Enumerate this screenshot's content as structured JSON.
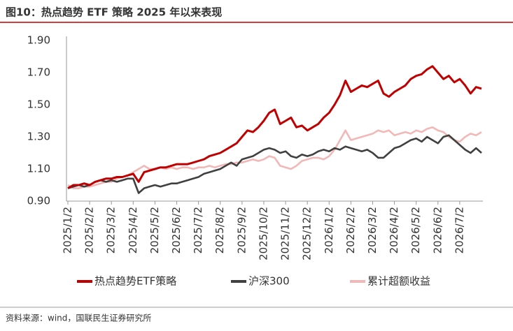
{
  "title": "图10：热点趋势 ETF 策略 2025 年以来表现",
  "source": "资料来源：wind，国联民生证券研究所",
  "chart_data": {
    "type": "line",
    "categories": [
      "2025/1/2",
      null,
      null,
      null,
      "2025/2/2",
      null,
      null,
      null,
      "2025/3/2",
      null,
      null,
      null,
      "2025/4/2",
      null,
      null,
      null,
      "2025/5/2",
      null,
      null,
      null,
      "2025/6/2",
      null,
      null,
      null,
      "2025/7/2",
      null,
      null,
      null,
      "2025/8/2",
      null,
      null,
      null,
      "2025/9/2",
      null,
      null,
      null,
      "2025/10/2",
      null,
      null,
      null,
      "2025/11/2",
      null,
      null,
      null,
      "2025/12/2",
      null,
      null,
      null,
      "2026/1/2",
      null,
      null,
      null,
      "2026/2/2",
      null,
      null,
      null,
      "2026/3/2",
      null,
      null,
      null,
      "2026/4/2",
      null,
      null,
      null,
      "2026/5/2",
      null,
      null,
      null,
      "2026/6/2",
      null,
      null,
      null,
      "2026/7/2",
      null,
      null,
      null,
      null
    ],
    "ylim": [
      0.9,
      1.9
    ],
    "yticks": [
      {
        "value": 0.9,
        "label": "0.90"
      },
      {
        "value": 1.1,
        "label": "1.10"
      },
      {
        "value": 1.3,
        "label": "1.30"
      },
      {
        "value": 1.5,
        "label": "1.50"
      },
      {
        "value": 1.7,
        "label": "1.70"
      },
      {
        "value": 1.9,
        "label": "1.90"
      }
    ],
    "grid": false,
    "series": [
      {
        "name": "热点趋势ETF策略",
        "color": "#c00000",
        "values": [
          0.98,
          1.0,
          1.0,
          1.01,
          1.0,
          1.02,
          1.03,
          1.04,
          1.04,
          1.05,
          1.05,
          1.06,
          1.07,
          1.02,
          1.08,
          1.09,
          1.1,
          1.11,
          1.11,
          1.12,
          1.13,
          1.13,
          1.13,
          1.14,
          1.15,
          1.16,
          1.18,
          1.19,
          1.2,
          1.22,
          1.24,
          1.26,
          1.3,
          1.34,
          1.33,
          1.36,
          1.4,
          1.45,
          1.47,
          1.38,
          1.4,
          1.42,
          1.36,
          1.37,
          1.34,
          1.36,
          1.38,
          1.42,
          1.45,
          1.5,
          1.56,
          1.65,
          1.58,
          1.6,
          1.62,
          1.61,
          1.63,
          1.65,
          1.57,
          1.55,
          1.58,
          1.6,
          1.62,
          1.66,
          1.68,
          1.69,
          1.72,
          1.74,
          1.7,
          1.66,
          1.68,
          1.64,
          1.66,
          1.62,
          1.57,
          1.61,
          1.6
        ]
      },
      {
        "name": "沪深300",
        "color": "#404040",
        "values": [
          0.98,
          0.99,
          1.0,
          0.99,
          1.0,
          1.02,
          1.03,
          1.02,
          1.03,
          1.02,
          1.03,
          1.04,
          1.04,
          0.95,
          0.98,
          0.99,
          1.0,
          0.99,
          1.0,
          1.01,
          1.01,
          1.02,
          1.03,
          1.04,
          1.05,
          1.07,
          1.08,
          1.09,
          1.1,
          1.12,
          1.14,
          1.12,
          1.16,
          1.17,
          1.18,
          1.2,
          1.22,
          1.23,
          1.22,
          1.2,
          1.21,
          1.18,
          1.17,
          1.19,
          1.18,
          1.19,
          1.21,
          1.22,
          1.21,
          1.23,
          1.22,
          1.24,
          1.23,
          1.22,
          1.21,
          1.22,
          1.2,
          1.17,
          1.17,
          1.2,
          1.23,
          1.24,
          1.26,
          1.28,
          1.29,
          1.27,
          1.3,
          1.28,
          1.26,
          1.3,
          1.31,
          1.28,
          1.25,
          1.22,
          1.2,
          1.23,
          1.2
        ]
      },
      {
        "name": "累计超额收益",
        "color": "#f2b8b8",
        "values": [
          1.0,
          0.98,
          0.98,
          0.99,
          0.99,
          1.0,
          1.01,
          1.02,
          1.02,
          1.04,
          1.05,
          1.06,
          1.08,
          1.1,
          1.12,
          1.1,
          1.1,
          1.11,
          1.1,
          1.11,
          1.1,
          1.11,
          1.11,
          1.1,
          1.11,
          1.11,
          1.12,
          1.11,
          1.12,
          1.13,
          1.13,
          1.14,
          1.14,
          1.15,
          1.16,
          1.15,
          1.16,
          1.18,
          1.17,
          1.12,
          1.11,
          1.1,
          1.12,
          1.15,
          1.16,
          1.17,
          1.17,
          1.16,
          1.18,
          1.22,
          1.28,
          1.34,
          1.28,
          1.29,
          1.3,
          1.31,
          1.32,
          1.34,
          1.33,
          1.34,
          1.31,
          1.32,
          1.33,
          1.32,
          1.34,
          1.33,
          1.35,
          1.36,
          1.34,
          1.33,
          1.3,
          1.28,
          1.27,
          1.3,
          1.32,
          1.31,
          1.33
        ]
      }
    ]
  }
}
